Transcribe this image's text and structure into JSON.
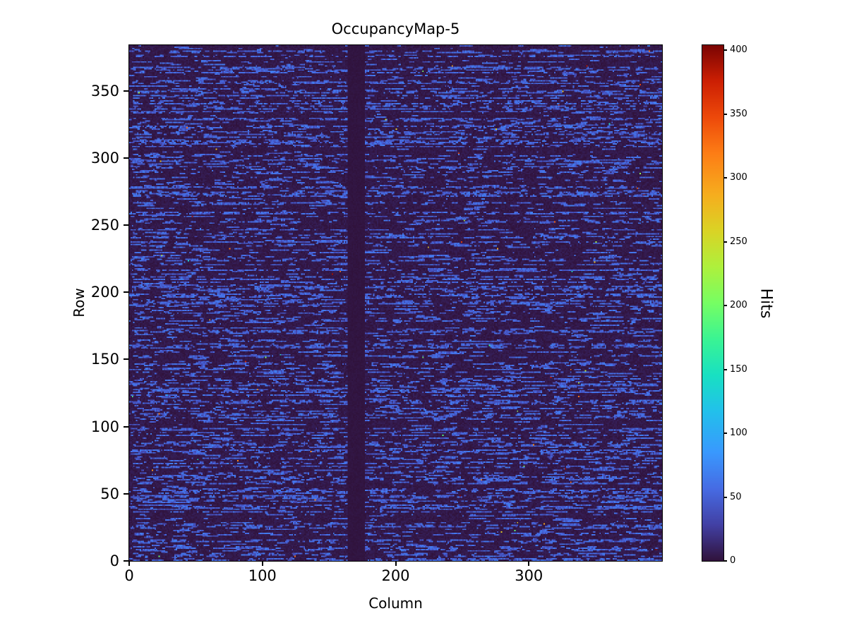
{
  "colors": {
    "background": "#ffffff",
    "text": "#000000",
    "spine": "#000000",
    "heatmap_background": "#30123b",
    "streak_blue": "#466be3",
    "colorbar_top": "#7a0403"
  },
  "chart_data": {
    "type": "heatmap",
    "title": "OccupancyMap-5",
    "xlabel": "Column",
    "ylabel": "Row",
    "colorbar_label": "Hits",
    "x_range": [
      0,
      400
    ],
    "y_range": [
      0,
      384
    ],
    "x_ticks": [
      0,
      100,
      200,
      300
    ],
    "y_ticks": [
      0,
      50,
      100,
      150,
      200,
      250,
      300,
      350
    ],
    "colorbar_ticks": [
      0,
      50,
      100,
      150,
      200,
      250,
      300,
      350,
      400
    ],
    "value_range": [
      0,
      404
    ],
    "grid": false,
    "legend": "none",
    "colormap": "turbo",
    "colormap_stops": [
      [
        0.0,
        [
          48,
          18,
          59
        ]
      ],
      [
        0.07,
        [
          66,
          64,
          164
        ]
      ],
      [
        0.14,
        [
          70,
          107,
          227
        ]
      ],
      [
        0.21,
        [
          57,
          152,
          254
        ]
      ],
      [
        0.29,
        [
          34,
          192,
          235
        ]
      ],
      [
        0.36,
        [
          24,
          224,
          194
        ]
      ],
      [
        0.43,
        [
          58,
          244,
          147
        ]
      ],
      [
        0.5,
        [
          118,
          254,
          99
        ]
      ],
      [
        0.57,
        [
          174,
          240,
          60
        ]
      ],
      [
        0.64,
        [
          218,
          211,
          37
        ]
      ],
      [
        0.71,
        [
          246,
          173,
          30
        ]
      ],
      [
        0.79,
        [
          253,
          125,
          21
        ]
      ],
      [
        0.86,
        [
          237,
          73,
          10
        ]
      ],
      [
        0.93,
        [
          204,
          31,
          3
        ]
      ],
      [
        1.0,
        [
          122,
          4,
          3
        ]
      ]
    ],
    "pattern": {
      "description": "Sparse pixel-detector occupancy map: near-zero dark background with horizontal dashed streaks of ~30-70 hits scattered over all rows; vertical dead band around columns 164-176; rare isolated hot pixels up to ~404 hits.",
      "background_value_max": 8,
      "streak_value_min": 30,
      "streak_value_max": 70,
      "dash_length_mean": 5,
      "row_density_min": 0.03,
      "row_density_max": 0.55,
      "row_density_exponent": 1.6,
      "dead_columns": [
        164,
        176
      ],
      "hot_pixel_probability": 0.0004,
      "seed": 5
    }
  }
}
